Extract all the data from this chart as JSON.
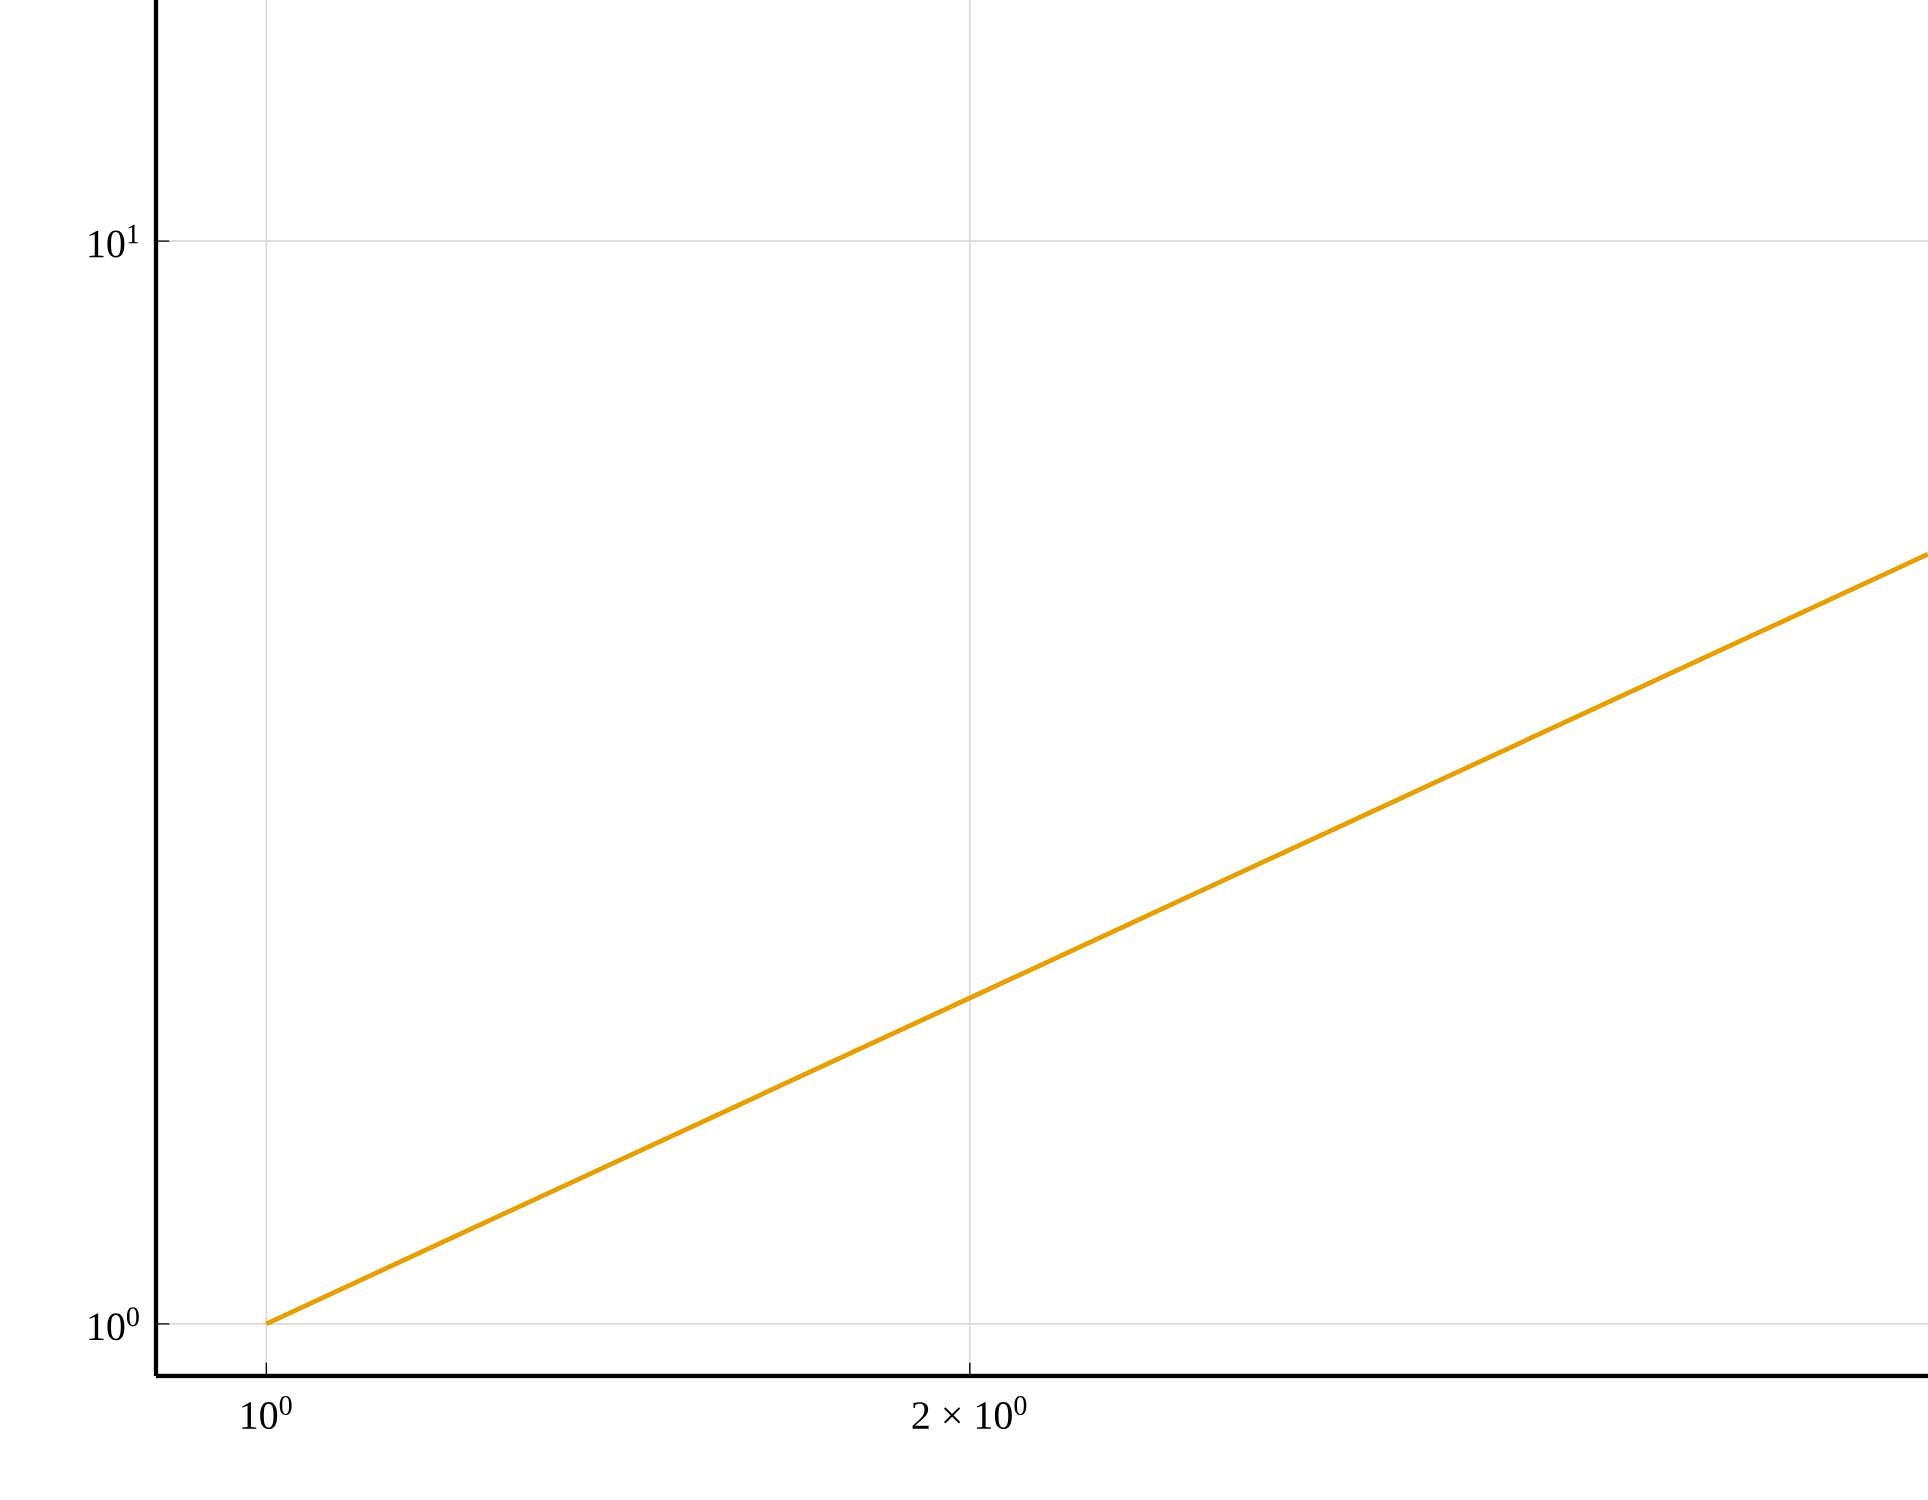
{
  "chart_data": {
    "type": "line",
    "log": "xy",
    "grid": true,
    "xlim": [
      0.897,
      5.14
    ],
    "ylim": [
      0.895,
      16.7
    ],
    "xticks": [
      {
        "value": 1,
        "label": "10$^{0}$"
      },
      {
        "value": 2,
        "label": "2 × 10$^{0}$"
      }
    ],
    "yticks": [
      {
        "value": 1,
        "label": "10$^{0}$"
      },
      {
        "value": 10,
        "label": "10$^{1}$"
      }
    ],
    "series": [
      {
        "color": "#e69f00",
        "x": [
          1,
          2,
          5.14
        ],
        "values": [
          1,
          2,
          5.14
        ]
      }
    ]
  }
}
